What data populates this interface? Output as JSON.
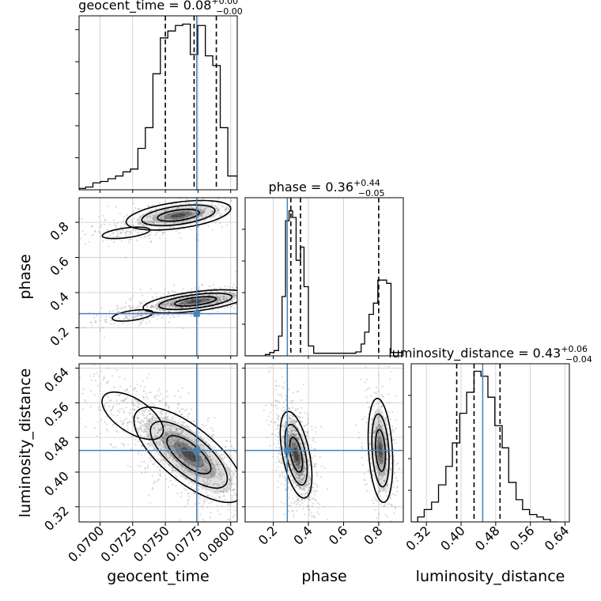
{
  "chart_data": {
    "type": "corner",
    "parameters": [
      "geocent_time",
      "phase",
      "luminosity_distance"
    ],
    "colors": {
      "truth": "#4682b4",
      "hist": "#000000",
      "grid": "#c8c8c8",
      "points": "#7f7f7f"
    },
    "titles": {
      "geocent_time": {
        "label": "geocent_time = 0.08",
        "up": "+0.00",
        "down": "−0.00"
      },
      "phase": {
        "label": "phase = 0.36",
        "up": "+0.44",
        "down": "−0.05"
      },
      "luminosity_distance": {
        "label": "luminosity_distance = 0.43",
        "up": "+0.06",
        "down": "−0.04"
      }
    },
    "axis_labels": {
      "x": [
        "geocent_time",
        "phase",
        "luminosity_distance"
      ],
      "y": [
        "phase",
        "luminosity_distance"
      ]
    },
    "ranges": {
      "geocent_time": [
        0.0684,
        0.0805
      ],
      "phase": [
        0.04,
        0.94
      ],
      "luminosity_distance": [
        0.285,
        0.65
      ]
    },
    "ticks": {
      "geocent_time": [
        0.07,
        0.0725,
        0.075,
        0.0775,
        0.08
      ],
      "phase": [
        0.2,
        0.4,
        0.6,
        0.8
      ],
      "luminosity_distance": [
        0.32,
        0.4,
        0.48,
        0.56,
        0.64
      ]
    },
    "tick_labels": {
      "geocent_time": [
        "0.0700",
        "0.0725",
        "0.0750",
        "0.0775",
        "0.0800"
      ],
      "phase": [
        "0.2",
        "0.4",
        "0.6",
        "0.8"
      ],
      "luminosity_distance": [
        "0.32",
        "0.40",
        "0.48",
        "0.56",
        "0.64"
      ]
    },
    "truths": {
      "geocent_time": 0.0774,
      "phase": 0.28,
      "luminosity_distance": 0.45
    },
    "quantiles": {
      "geocent_time": [
        0.075,
        0.0772,
        0.0789
      ],
      "phase": [
        0.3,
        0.355,
        0.8
      ],
      "luminosity_distance": [
        0.39,
        0.43,
        0.49
      ]
    },
    "histograms": {
      "geocent_time": {
        "edges": [
          0.0684,
          0.06891,
          0.06946,
          0.07003,
          0.07061,
          0.07119,
          0.07176,
          0.07233,
          0.0729,
          0.07347,
          0.07405,
          0.07462,
          0.07519,
          0.07577,
          0.07633,
          0.07691,
          0.07748,
          0.07806,
          0.07863,
          0.0792,
          0.07978,
          0.0805
        ],
        "counts": [
          1,
          2,
          5,
          6,
          8,
          10,
          13,
          15,
          30,
          45,
          84,
          110,
          115,
          119,
          120,
          98,
          119,
          97,
          90,
          45,
          10
        ]
      },
      "phase": {
        "edges": [
          0.04,
          0.155,
          0.18,
          0.205,
          0.23,
          0.25,
          0.27,
          0.29,
          0.31,
          0.33,
          0.355,
          0.375,
          0.4,
          0.43,
          0.55,
          0.67,
          0.7,
          0.72,
          0.745,
          0.77,
          0.795,
          0.82,
          0.845,
          0.87,
          0.94
        ],
        "counts": [
          0,
          2,
          5,
          8,
          30,
          90,
          205,
          220,
          210,
          145,
          165,
          105,
          15,
          4,
          4,
          6,
          18,
          36,
          63,
          80,
          115,
          115,
          110,
          5
        ],
        "ymax": 240
      },
      "luminosity_distance": {
        "edges": [
          0.285,
          0.3,
          0.315,
          0.332,
          0.348,
          0.365,
          0.38,
          0.397,
          0.413,
          0.43,
          0.446,
          0.462,
          0.478,
          0.495,
          0.51,
          0.527,
          0.542,
          0.558,
          0.575,
          0.59,
          0.606,
          0.622
        ],
        "counts": [
          0,
          4,
          10,
          16,
          30,
          45,
          64,
          88,
          105,
          122,
          118,
          101,
          78,
          60,
          32,
          18,
          10,
          6,
          4,
          2,
          0
        ]
      }
    },
    "densities": {
      "phase_vs_geocent_time": {
        "blobs": [
          {
            "x": 0.0773,
            "y": 0.35,
            "sx": 0.002,
            "sy": 0.033,
            "rho": 0.55,
            "w": 0.55
          },
          {
            "x": 0.076,
            "y": 0.84,
            "sx": 0.002,
            "sy": 0.042,
            "rho": 0.45,
            "w": 0.3
          },
          {
            "x": 0.0725,
            "y": 0.27,
            "sx": 0.0012,
            "sy": 0.025,
            "rho": 0.5,
            "w": 0.08
          },
          {
            "x": 0.072,
            "y": 0.74,
            "sx": 0.0014,
            "sy": 0.025,
            "rho": 0.5,
            "w": 0.07
          }
        ]
      },
      "luminosity_distance_vs_geocent_time": {
        "blobs": [
          {
            "x": 0.0768,
            "y": 0.44,
            "sx": 0.0021,
            "sy": 0.055,
            "rho": -0.72,
            "w": 0.82
          },
          {
            "x": 0.0725,
            "y": 0.53,
            "sx": 0.0018,
            "sy": 0.042,
            "rho": -0.6,
            "w": 0.18
          }
        ]
      },
      "luminosity_distance_vs_phase": {
        "blobs": [
          {
            "x": 0.33,
            "y": 0.44,
            "sx": 0.045,
            "sy": 0.05,
            "rho": -0.5,
            "w": 0.72
          },
          {
            "x": 0.81,
            "y": 0.45,
            "sx": 0.035,
            "sy": 0.06,
            "rho": -0.25,
            "w": 0.28
          }
        ]
      }
    }
  }
}
